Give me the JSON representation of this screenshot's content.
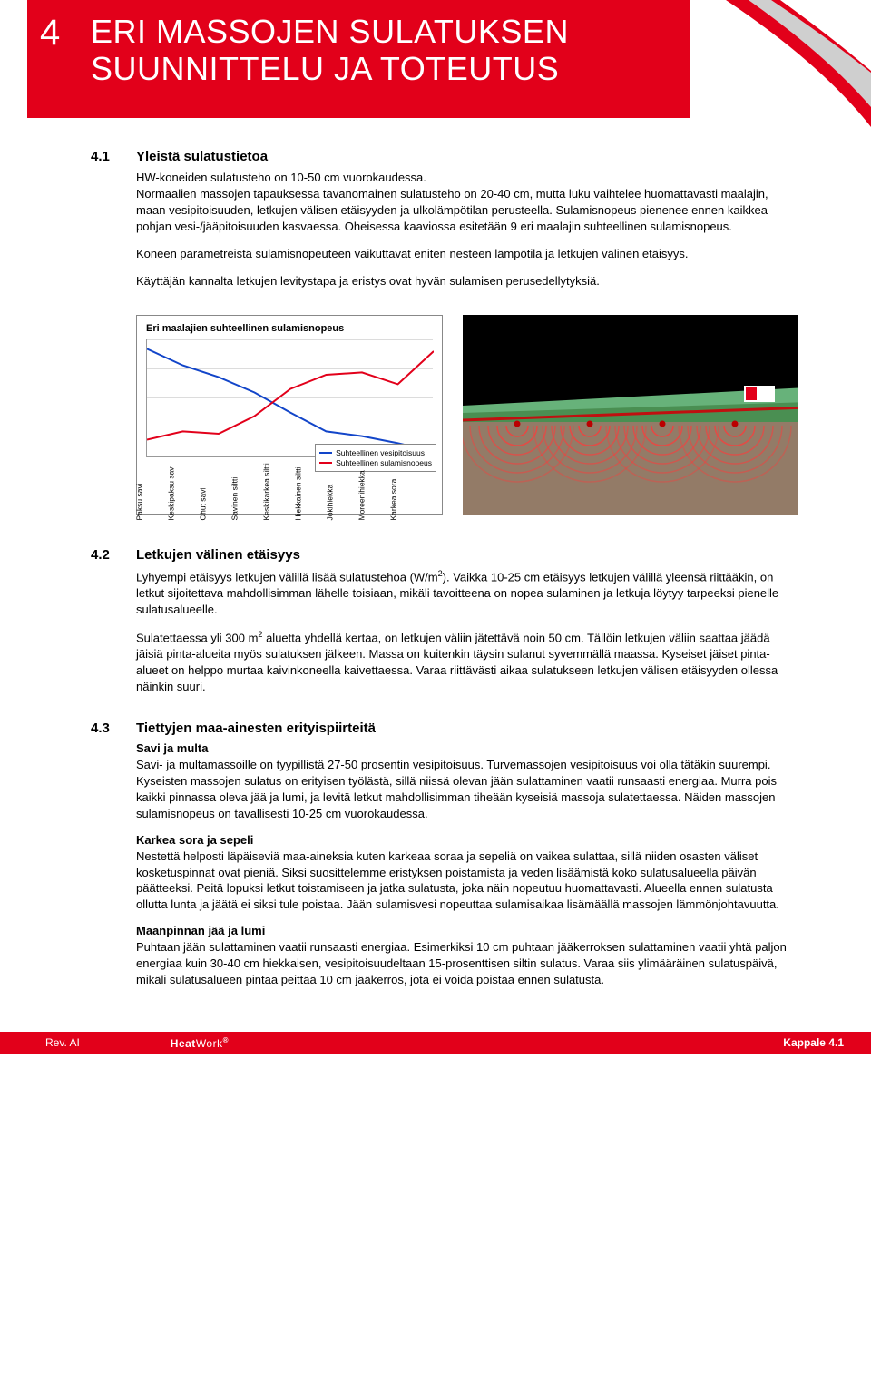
{
  "chapter": {
    "number": "4",
    "title_line1": "ERI MASSOJEN SULATUKSEN",
    "title_line2": "SUUNNITTELU JA TOTEUTUS"
  },
  "colors": {
    "brand_red": "#e2001a",
    "text": "#000000",
    "chart_blue": "#1245c9",
    "chart_red": "#e2001a",
    "grid": "#dcdcdc",
    "chart_border": "#888888",
    "illus_sky": "#67b27a",
    "illus_ground_top": "#4a8f52",
    "illus_cross_brown": "#8a6f5a",
    "illus_wave_red": "#ff3a3a"
  },
  "section41": {
    "num": "4.1",
    "title": "Yleistä sulatustietoa",
    "first_line": "HW-koneiden sulatusteho on 10-50 cm vuorokaudessa.",
    "p1": "Normaalien massojen tapauksessa tavanomainen sulatusteho on 20-40 cm, mutta luku vaihtelee huomattavasti maalajin, maan vesipitoisuuden, letkujen välisen etäisyyden ja ulkolämpötilan perusteella. Sulamisnopeus pienenee ennen kaikkea pohjan vesi-/jääpitoisuuden kasvaessa. Oheisessa kaaviossa esitetään 9 eri maalajin suhteellinen sulamisnopeus.",
    "p2": "Koneen parametreistä sulamisnopeuteen vaikuttavat eniten nesteen lämpötila ja letkujen välinen etäisyys.",
    "p3": "Käyttäjän kannalta letkujen levitystapa ja eristys ovat hyvän sulamisen perusedellytyksiä."
  },
  "chart": {
    "title": "Eri maalajien suhteellinen sulamisnopeus",
    "legend": [
      {
        "label": "Suhteellinen vesipitoisuus",
        "color": "#1245c9"
      },
      {
        "label": "Suhteellinen sulamisnopeus",
        "color": "#e2001a"
      }
    ],
    "xlabels": [
      "Paksu savi",
      "Keskipaksu savi",
      "Ohut savi",
      "Savinen siltti",
      "Keskikarkea siltti",
      "Hiekkainen siltti",
      "Jokihiekka",
      "Moreenihiekka",
      "Karkea sora"
    ],
    "series_blue": [
      0.92,
      0.78,
      0.68,
      0.55,
      0.38,
      0.22,
      0.18,
      0.12,
      0.05
    ],
    "series_red": [
      0.15,
      0.22,
      0.2,
      0.35,
      0.58,
      0.7,
      0.72,
      0.62,
      0.9
    ],
    "ylim": [
      0,
      1
    ],
    "grid_lines": 5
  },
  "section42": {
    "num": "4.2",
    "title": "Letkujen välinen etäisyys",
    "p1a": "Lyhyempi etäisyys letkujen välillä lisää sulatustehoa (W/m",
    "p1b": "). Vaikka 10-25 cm etäisyys letkujen välillä yleensä riittääkin, on letkut sijoitettava mahdollisimman lähelle toisiaan, mikäli tavoitteena on nopea sulaminen ja letkuja löytyy tarpeeksi pienelle sulatusalueelle.",
    "p2a": "Sulatettaessa yli 300 m",
    "p2b": " aluetta yhdellä kertaa, on letkujen väliin jätettävä noin 50 cm. Tällöin letkujen väliin saattaa jäädä jäisiä pinta-alueita myös sulatuksen jälkeen. Massa on kuitenkin täysin sulanut syvemmällä maassa. Kyseiset jäiset pinta-alueet on helppo murtaa kaivinkoneella kaivettaessa. Varaa riittävästi aikaa sulatukseen letkujen välisen etäisyyden ollessa näinkin suuri.",
    "sup": "2"
  },
  "section43": {
    "num": "4.3",
    "title": "Tiettyjen maa-ainesten erityispiirteitä",
    "sub1_title": "Savi ja multa",
    "sub1_body": "Savi- ja multamassoille on tyypillistä 27-50 prosentin vesipitoisuus. Turvemassojen vesipitoisuus voi olla tätäkin suurempi. Kyseisten massojen sulatus on erityisen työlästä, sillä niissä olevan jään sulattaminen vaatii runsaasti energiaa. Murra pois kaikki pinnassa oleva jää ja lumi, ja levitä letkut mahdollisimman tiheään kyseisiä massoja sulatettaessa. Näiden massojen sulamisnopeus on tavallisesti 10-25 cm vuorokaudessa.",
    "sub2_title": "Karkea sora ja sepeli",
    "sub2_body": "Nestettä helposti läpäiseviä maa-aineksia kuten karkeaa soraa ja sepeliä on vaikea sulattaa, sillä niiden osasten väliset kosketuspinnat ovat pieniä. Siksi suosittelemme eristyksen poistamista ja veden lisäämistä koko sulatusalueella päivän päätteeksi. Peitä lopuksi letkut toistamiseen ja jatka sulatusta, joka näin nopeutuu huomattavasti. Alueella ennen sulatusta ollutta lunta ja jäätä ei siksi tule poistaa. Jään sulamisvesi nopeuttaa sulamisaikaa lisämäällä massojen lämmönjohtavuutta.",
    "sub3_title": "Maanpinnan jää ja lumi",
    "sub3_body": "Puhtaan jään sulattaminen vaatii runsaasti energiaa. Esimerkiksi 10 cm puhtaan jääkerroksen sulattaminen vaatii yhtä paljon energiaa kuin 30-40 cm hiekkaisen, vesipitoisuudeltaan 15-prosenttisen siltin sulatus. Varaa siis ylimääräinen sulatuspäivä, mikäli sulatusalueen pintaa peittää 10 cm jääkerros, jota ei voida poistaa ennen sulatusta."
  },
  "footer": {
    "rev": "Rev. AI",
    "brand1": "Heat",
    "brand2": "Work",
    "reg": "®",
    "page": "Kappale 4.1"
  }
}
